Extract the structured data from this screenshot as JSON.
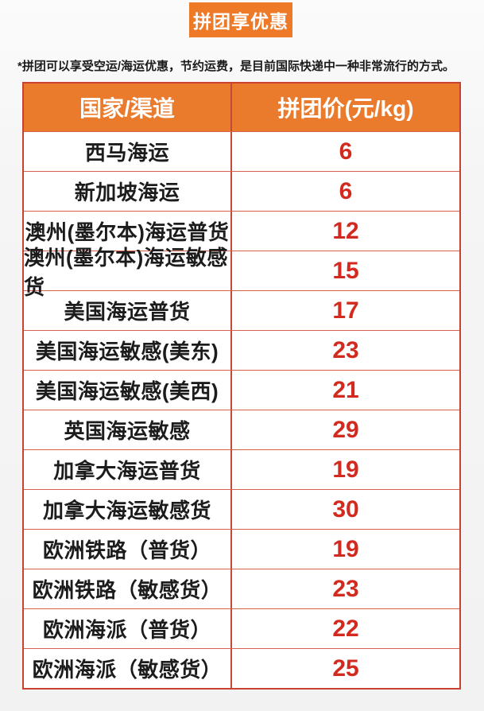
{
  "badge": {
    "label": "拼团享优惠"
  },
  "note": "*拼团可以享受空运/海运优惠，节约运费，是目前国际快递中一种非常流行的方式。",
  "colors": {
    "accent_orange": "#ee7a28",
    "header_orange": "#ea7b2d",
    "price_red": "#d32a1f",
    "outer_border_red": "#c9422f",
    "row_border_red": "#d8604e",
    "page_background": "#f5f5f5"
  },
  "table": {
    "headers": [
      "国家/渠道",
      "拼团价(元/kg)"
    ],
    "rows": [
      {
        "channel": "西马海运",
        "price": "6"
      },
      {
        "channel": "新加坡海运",
        "price": "6"
      },
      {
        "channel": "澳州(墨尔本)海运普货",
        "price": "12"
      },
      {
        "channel": "澳州(墨尔本)海运敏感货",
        "price": "15"
      },
      {
        "channel": "美国海运普货",
        "price": "17"
      },
      {
        "channel": "美国海运敏感(美东)",
        "price": "23"
      },
      {
        "channel": "美国海运敏感(美西)",
        "price": "21"
      },
      {
        "channel": "英国海运敏感",
        "price": "29"
      },
      {
        "channel": "加拿大海运普货",
        "price": "19"
      },
      {
        "channel": "加拿大海运敏感货",
        "price": "30"
      },
      {
        "channel": "欧洲铁路（普货）",
        "price": "19"
      },
      {
        "channel": "欧洲铁路（敏感货）",
        "price": "23"
      },
      {
        "channel": "欧洲海派（普货）",
        "price": "22"
      },
      {
        "channel": "欧洲海派（敏感货）",
        "price": "25"
      }
    ]
  }
}
